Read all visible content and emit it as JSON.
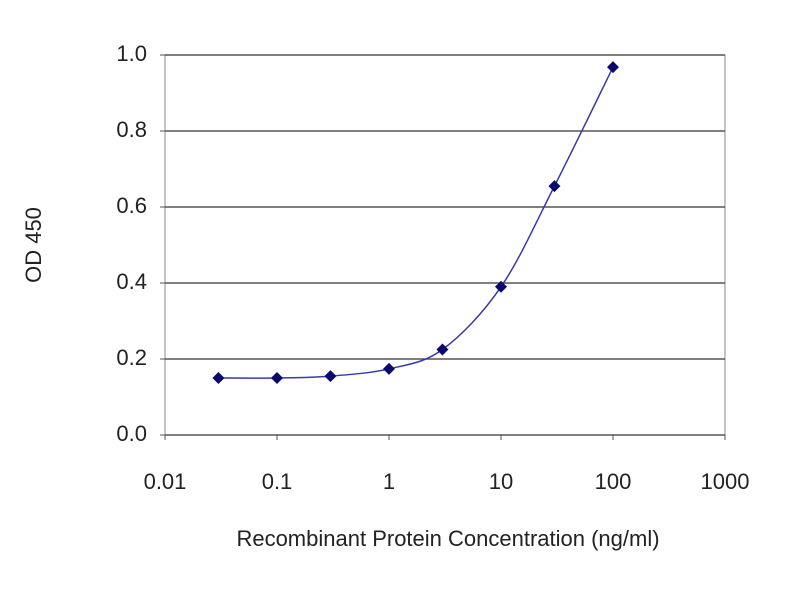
{
  "chart_data": {
    "type": "line",
    "x_label": "Recombinant Protein Concentration (ng/ml)",
    "y_label": "OD 450",
    "x": [
      0.03,
      0.1,
      0.3,
      1,
      3,
      10,
      30,
      100
    ],
    "values": [
      0.15,
      0.15,
      0.155,
      0.174,
      0.225,
      0.39,
      0.655,
      0.968
    ],
    "line_color": "#3a3aa8",
    "marker_color": "#0a0a6e",
    "x_log": true,
    "xlim": [
      0.01,
      1000
    ],
    "xticks": [
      0.01,
      0.1,
      1,
      10,
      100,
      1000
    ],
    "ylim": [
      0,
      1
    ],
    "yticks": [
      {
        "value": 0,
        "label": "0.0"
      },
      0.2,
      0.4,
      0.6,
      0.8,
      {
        "value": 1,
        "label": "1.0"
      }
    ],
    "grid": true
  }
}
